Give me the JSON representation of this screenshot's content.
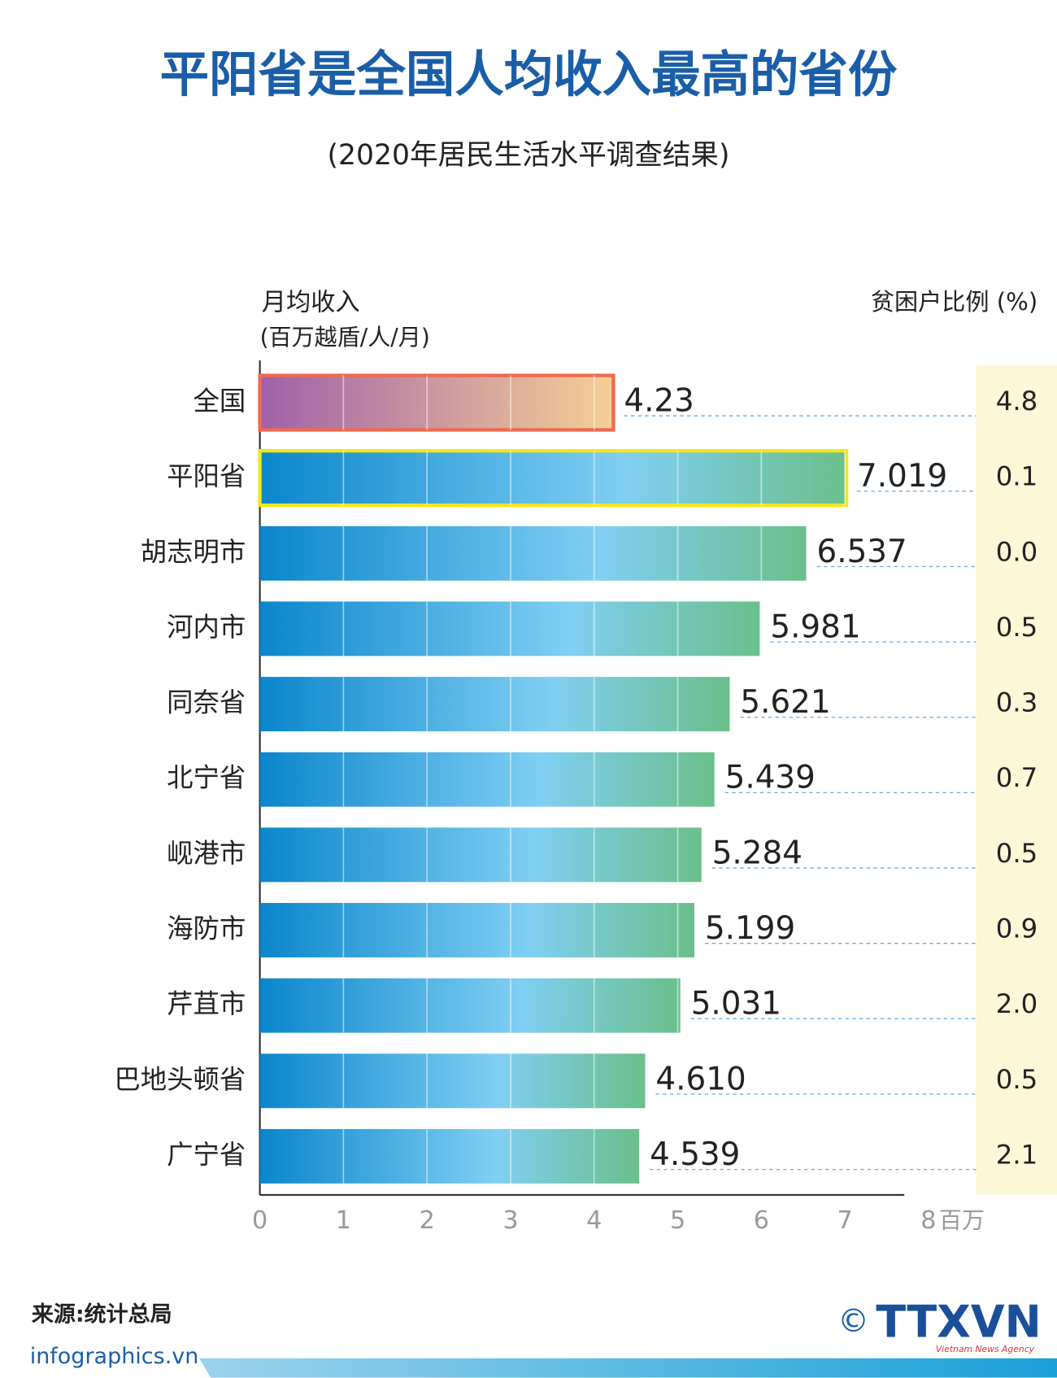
{
  "chart_data": {
    "type": "bar",
    "orientation": "horizontal",
    "title": "平阳省是全国人均收入最高的省份",
    "subtitle": "(2020年居民生活水平调查结果)",
    "x_label_lines": [
      "月均收入",
      "(百万越盾/人/月)"
    ],
    "x_unit": "百万",
    "right_header": "贫困户比例 (%)",
    "categories": [
      "全国",
      "平阳省",
      "胡志明市",
      "河内市",
      "同奈省",
      "北宁省",
      "岘港市",
      "海防市",
      "芹苴市",
      "巴地头顿省",
      "广宁省"
    ],
    "series": [
      {
        "name": "月均收入",
        "gradient": [
          "#0a86cc",
          "#80cff3",
          "#6abf8b"
        ],
        "values": [
          4.23,
          7.019,
          6.537,
          5.981,
          5.621,
          5.439,
          5.284,
          5.199,
          5.031,
          4.61,
          4.539
        ],
        "value_labels": [
          "4.23",
          "7.019",
          "6.537",
          "5.981",
          "5.621",
          "5.439",
          "5.284",
          "5.199",
          "5.031",
          "4.610",
          "4.539"
        ]
      },
      {
        "name": "贫困户比例",
        "values": [
          4.8,
          0.1,
          0,
          0.5,
          0.3,
          0.7,
          0.5,
          0.9,
          2,
          0.5,
          2.1
        ],
        "value_labels": [
          "4.8",
          "0.1",
          "0.0",
          "0.5",
          "0.3",
          "0.7",
          "0.5",
          "0.9",
          "2.0",
          "0.5",
          "2.1"
        ]
      }
    ],
    "first_gradient": [
      "#a161a9",
      "#f6cf95"
    ],
    "first_border": "#ee6a4f",
    "second_border": "#f4e61c",
    "xlim": [
      0,
      8
    ],
    "xticks": [
      0,
      1,
      2,
      3,
      4,
      5,
      6,
      7,
      8
    ]
  },
  "footer": {
    "source": "来源:统计总局",
    "site": "infographics.vn",
    "logo": "TTXVN",
    "agency": "Vietnam News Agency",
    "copyright": "©"
  }
}
